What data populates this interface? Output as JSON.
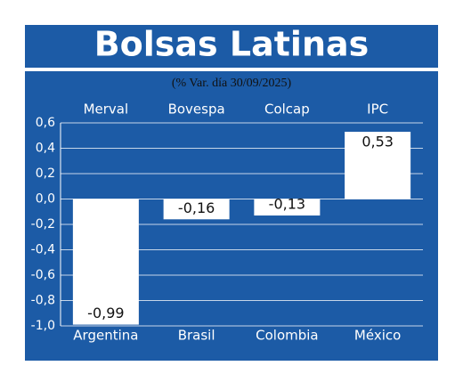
{
  "chart_data": {
    "type": "bar",
    "title": "Bolsas Latinas",
    "subtitle": "(% Var. día 30/09/2025)",
    "categories": [
      "Argentina",
      "Brasil",
      "Colombia",
      "México"
    ],
    "indices": [
      "Merval",
      "Bovespa",
      "Colcap",
      "IPC"
    ],
    "values": [
      -0.99,
      -0.16,
      -0.13,
      0.53
    ],
    "value_labels": [
      "-0,99",
      "-0,16",
      "-0,13",
      "0,53"
    ],
    "color": "#ffffff",
    "ylim": [
      -1.0,
      0.6
    ],
    "yticks": [
      {
        "value": 0.6,
        "label": "0,6"
      },
      {
        "value": 0.4,
        "label": "0,4"
      },
      {
        "value": 0.2,
        "label": "0,2"
      },
      {
        "value": 0.0,
        "label": "0,0"
      },
      {
        "value": -0.2,
        "label": "-0,2"
      },
      {
        "value": -0.4,
        "label": "-0,4"
      },
      {
        "value": -0.6,
        "label": "-0,6"
      },
      {
        "value": -0.8,
        "label": "-0,8"
      },
      {
        "value": -1.0,
        "label": "-1,0"
      }
    ],
    "grid": true
  }
}
